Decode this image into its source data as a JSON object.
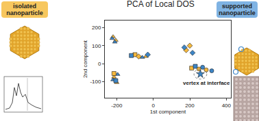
{
  "chart_data": {
    "type": "scatter",
    "title": "PCA of Local DOS",
    "x_label": "1st component",
    "y_label": "2nd component",
    "xlim": [
      -265,
      425
    ],
    "xticks": [
      -200,
      0,
      200,
      400
    ],
    "ylim": [
      -190,
      240
    ],
    "yticks": [
      -100,
      0,
      100,
      200
    ],
    "grid": false,
    "series": [
      {
        "color": "#f5b83d",
        "marker": "triangle-up",
        "x": [
          -220,
          -205,
          -215,
          -200,
          -40
        ],
        "y": [
          150,
          130,
          -75,
          -105,
          40
        ]
      },
      {
        "color": "#3d85c6",
        "marker": "triangle-up",
        "x": [
          -225,
          -210,
          -220,
          -195,
          -60
        ],
        "y": [
          140,
          120,
          -90,
          -60,
          35
        ]
      },
      {
        "color": "#f5b83d",
        "marker": "square",
        "x": [
          -215,
          -100,
          210
        ],
        "y": [
          -55,
          50,
          -25
        ]
      },
      {
        "color": "#3d85c6",
        "marker": "square",
        "x": [
          -205,
          -120,
          230
        ],
        "y": [
          -95,
          45,
          -15
        ]
      },
      {
        "color": "#f5b83d",
        "marker": "diamond",
        "x": [
          180,
          200,
          -80
        ],
        "y": [
          75,
          100,
          40
        ]
      },
      {
        "color": "#3d85c6",
        "marker": "diamond",
        "x": [
          170,
          215,
          -30
        ],
        "y": [
          90,
          60,
          50
        ]
      },
      {
        "color": "#f5b83d",
        "marker": "circle",
        "x": [
          250,
          290
        ],
        "y": [
          -30,
          -35
        ]
      },
      {
        "color": "#3d85c6",
        "marker": "circle",
        "x": [
          270,
          320
        ],
        "y": [
          -20,
          -40
        ]
      },
      {
        "color": "#3d85c6",
        "marker": "star",
        "x": [
          258
        ],
        "y": [
          -58
        ]
      }
    ],
    "annotations": [
      {
        "text": "vertex at interface",
        "x": 290,
        "y": -110
      }
    ]
  },
  "labels": {
    "left": "isolated nanoparticle",
    "right": "supported nanoparticle"
  }
}
